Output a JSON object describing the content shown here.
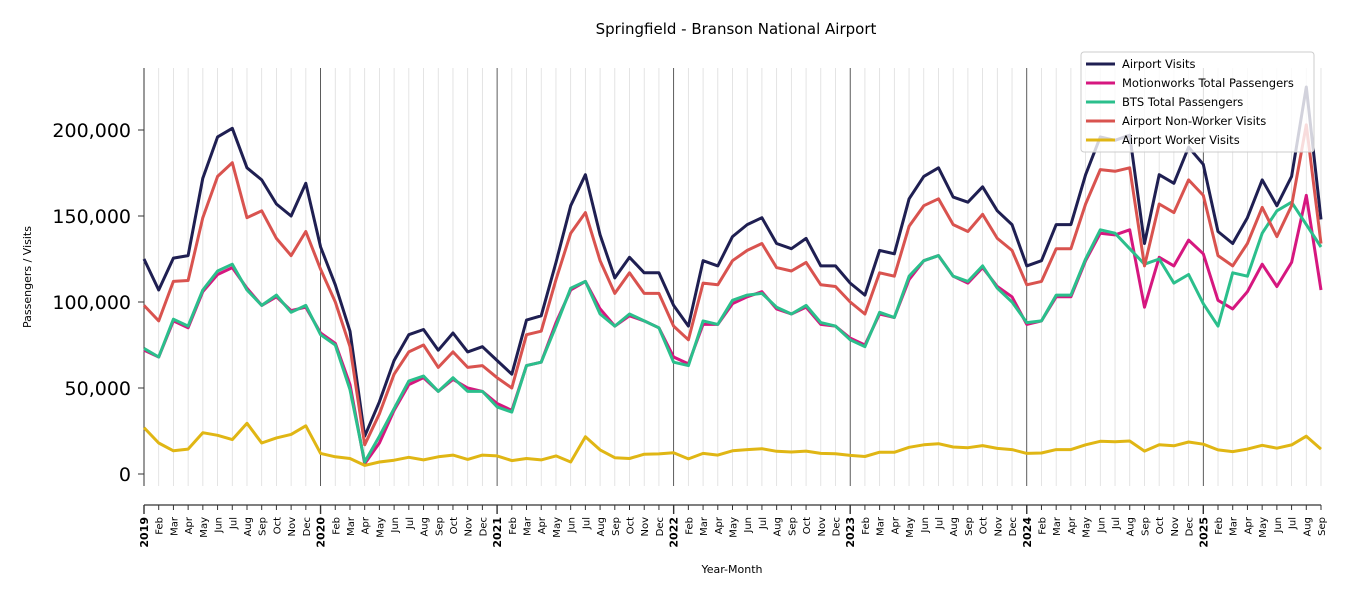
{
  "chart_data": {
    "type": "line",
    "title": "Springfield - Branson National Airport",
    "xlabel": "Year-Month",
    "ylabel": "Passengers / Visits",
    "ylim": [
      -7000,
      237000
    ],
    "yticks": [
      0,
      50000,
      100000,
      150000,
      200000
    ],
    "ytick_labels": [
      "0",
      "50,000",
      "100,000",
      "150,000",
      "200,000"
    ],
    "grid": "vertical minor monthly gridlines, vertical year separator lines",
    "legend_position": "top-right",
    "x_start": "2019-01",
    "x_end": "2025-09",
    "month_labels": [
      "Jan",
      "Feb",
      "Mar",
      "Apr",
      "May",
      "Jun",
      "Jul",
      "Aug",
      "Sep",
      "Oct",
      "Nov",
      "Dec"
    ],
    "year_labels": [
      "2019",
      "2020",
      "2021",
      "2022",
      "2023",
      "2024",
      "2025"
    ],
    "series": [
      {
        "name": "Airport Visits",
        "color": "#1f1f52",
        "values": [
          125000,
          107000,
          125500,
          127000,
          172000,
          196000,
          201000,
          178000,
          171000,
          157000,
          150000,
          169000,
          132000,
          110000,
          83000,
          22000,
          42000,
          66000,
          81000,
          84000,
          72000,
          82000,
          71000,
          74000,
          66000,
          58000,
          89500,
          92000,
          123000,
          156000,
          174000,
          139000,
          114000,
          126000,
          117000,
          117000,
          98000,
          86000,
          124000,
          121000,
          138000,
          145000,
          149000,
          134000,
          131000,
          137000,
          121000,
          121000,
          111000,
          104000,
          130000,
          128000,
          160000,
          173000,
          178000,
          161000,
          158000,
          167000,
          153000,
          145000,
          121000,
          124000,
          145000,
          145000,
          174000,
          196000,
          194000,
          197000,
          134000,
          174000,
          169000,
          190000,
          180000,
          141000,
          134000,
          149000,
          171000,
          156000,
          173000,
          225000,
          148000
        ]
      },
      {
        "name": "Motionworks Total Passengers",
        "color": "#d6177f",
        "values": [
          72000,
          68000,
          89000,
          85000,
          106000,
          116000,
          120000,
          108000,
          98000,
          103000,
          95000,
          97000,
          82000,
          76000,
          52000,
          6000,
          18000,
          37000,
          52000,
          56000,
          48000,
          55000,
          50000,
          48000,
          41000,
          37000,
          63000,
          65000,
          88000,
          107000,
          112000,
          96000,
          86000,
          92000,
          89000,
          85000,
          68000,
          64000,
          87000,
          87000,
          99000,
          103000,
          106000,
          96000,
          93000,
          97000,
          87000,
          86000,
          79000,
          75000,
          93000,
          91000,
          113000,
          124000,
          127000,
          115000,
          111000,
          120000,
          109000,
          103000,
          87000,
          89000,
          103000,
          103000,
          124000,
          140000,
          139000,
          142000,
          97000,
          126000,
          121000,
          136000,
          128000,
          101000,
          96000,
          106000,
          122000,
          109000,
          123000,
          162000,
          107000
        ]
      },
      {
        "name": "BTS Total Passengers",
        "color": "#2bbf8c",
        "values": [
          73000,
          68000,
          90000,
          86000,
          107000,
          118000,
          122000,
          107000,
          98000,
          104000,
          94000,
          98000,
          81000,
          75000,
          49000,
          7000,
          22000,
          38000,
          54000,
          57000,
          48000,
          56000,
          48000,
          48000,
          39000,
          36000,
          63000,
          65000,
          86000,
          108000,
          112000,
          93000,
          86000,
          93000,
          89000,
          85000,
          65000,
          63000,
          89000,
          87000,
          101000,
          104000,
          105000,
          97000,
          93000,
          98000,
          88000,
          86000,
          78000,
          74000,
          94000,
          91000,
          115000,
          124000,
          127000,
          115000,
          112000,
          121000,
          108000,
          100000,
          88000,
          89000,
          104000,
          104000,
          125000,
          142000,
          140000,
          131000,
          122000,
          125000,
          111000,
          116000,
          99000,
          86000,
          117000,
          115000,
          140000,
          153000,
          158000,
          145000,
          132000
        ]
      },
      {
        "name": "Airport Non-Worker Visits",
        "color": "#d9534f",
        "values": [
          98000,
          89000,
          112000,
          112500,
          149000,
          173000,
          181000,
          149000,
          153000,
          137000,
          127000,
          141000,
          119000,
          100000,
          74000,
          17000,
          35000,
          58000,
          71000,
          75000,
          62000,
          71000,
          62000,
          63000,
          56000,
          50000,
          81000,
          83000,
          113000,
          140000,
          152000,
          124000,
          105000,
          117000,
          105000,
          105000,
          86000,
          78000,
          111000,
          110000,
          124000,
          130000,
          134000,
          120000,
          118000,
          123000,
          110000,
          109000,
          100000,
          93000,
          117000,
          115000,
          144000,
          156000,
          160000,
          145000,
          141000,
          151000,
          137000,
          130000,
          110000,
          112000,
          131000,
          131000,
          157000,
          177000,
          176000,
          178000,
          121000,
          157000,
          152000,
          171000,
          162000,
          127000,
          121000,
          134000,
          155000,
          138000,
          156000,
          203000,
          134000
        ]
      },
      {
        "name": "Airport Worker Visits",
        "color": "#e0b614",
        "values": [
          27000,
          18000,
          13500,
          14500,
          24000,
          22500,
          20000,
          29500,
          18000,
          21000,
          23000,
          28000,
          12000,
          10000,
          9000,
          5000,
          7000,
          8000,
          9700,
          8200,
          10000,
          11000,
          8500,
          11000,
          10500,
          7800,
          9000,
          8200,
          10500,
          7000,
          21700,
          14000,
          9500,
          9000,
          11500,
          11700,
          12400,
          8800,
          12000,
          11000,
          13500,
          14200,
          14700,
          13200,
          12800,
          13300,
          12000,
          11800,
          10800,
          10200,
          12700,
          12600,
          15500,
          17000,
          17600,
          15700,
          15300,
          16500,
          14900,
          14200,
          12000,
          12200,
          14200,
          14200,
          17000,
          19000,
          18700,
          19200,
          13300,
          17000,
          16400,
          18600,
          17300,
          14000,
          13000,
          14500,
          16700,
          15000,
          16900,
          22000,
          14500
        ]
      }
    ]
  }
}
